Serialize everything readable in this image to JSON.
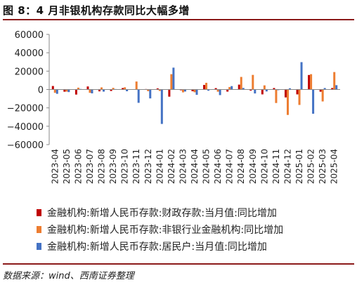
{
  "figure": {
    "title": "图 8：4 月非银机构存款同比大幅多增",
    "source": "数据来源：wind、西南证券整理"
  },
  "colors": {
    "fiscal": "#c00000",
    "nonbank": "#ed7d31",
    "household": "#4472c4",
    "rule": "#8b1a1a"
  },
  "chart_data": {
    "type": "bar",
    "categories": [
      "2023-04",
      "2023-05",
      "2023-06",
      "2023-07",
      "2023-08",
      "2023-09",
      "2023-10",
      "2023-11",
      "2023-12",
      "2024-01",
      "2024-02",
      "2024-03",
      "2024-04",
      "2024-05",
      "2024-06",
      "2024-07",
      "2024-08",
      "2024-09",
      "2024-10",
      "2024-11",
      "2024-12",
      "2025-01",
      "2025-02",
      "2025-03",
      "2025-04"
    ],
    "series": [
      {
        "name": "金融机构:新增人民币存款:财政存款:当月值:同比增加",
        "color": "#c00000",
        "values": [
          3800,
          -2400,
          -5500,
          3300,
          -2000,
          -1600,
          1600,
          400,
          500,
          1200,
          -7800,
          -800,
          -1900,
          5000,
          1500,
          -2300,
          5300,
          -1200,
          -5300,
          1600,
          -8600,
          -5300,
          15800,
          -2400,
          1600
        ]
      },
      {
        "name": "金融机构:新增人民币存款:非银行业金融机构:同比增加",
        "color": "#ed7d31",
        "values": [
          -3600,
          -2300,
          2000,
          -3600,
          2300,
          1800,
          2400,
          8700,
          -1800,
          -1600,
          16700,
          -3100,
          -3000,
          7300,
          -2400,
          2700,
          13700,
          15900,
          4500,
          -14700,
          -27700,
          -16800,
          16700,
          -13000,
          19000
        ]
      },
      {
        "name": "金融机构:新增人民币存款:居民户:当月值:同比增加",
        "color": "#4472c4",
        "values": [
          -4700,
          -2800,
          600,
          -4200,
          -2300,
          500,
          -1900,
          -14500,
          -9700,
          -37500,
          23800,
          -2200,
          -5800,
          -1300,
          -6100,
          3700,
          1700,
          -4300,
          -2100,
          -700,
          1300,
          29800,
          -26400,
          1600,
          4700
        ]
      }
    ],
    "ylim": [
      -60000,
      60000
    ],
    "yticks": [
      "60000",
      "40000",
      "20000",
      "0",
      "−20000",
      "−40000",
      "−60000"
    ],
    "ytick_values": [
      60000,
      40000,
      20000,
      0,
      -20000,
      -40000,
      -60000
    ],
    "grid": false,
    "legend_position": "bottom"
  }
}
